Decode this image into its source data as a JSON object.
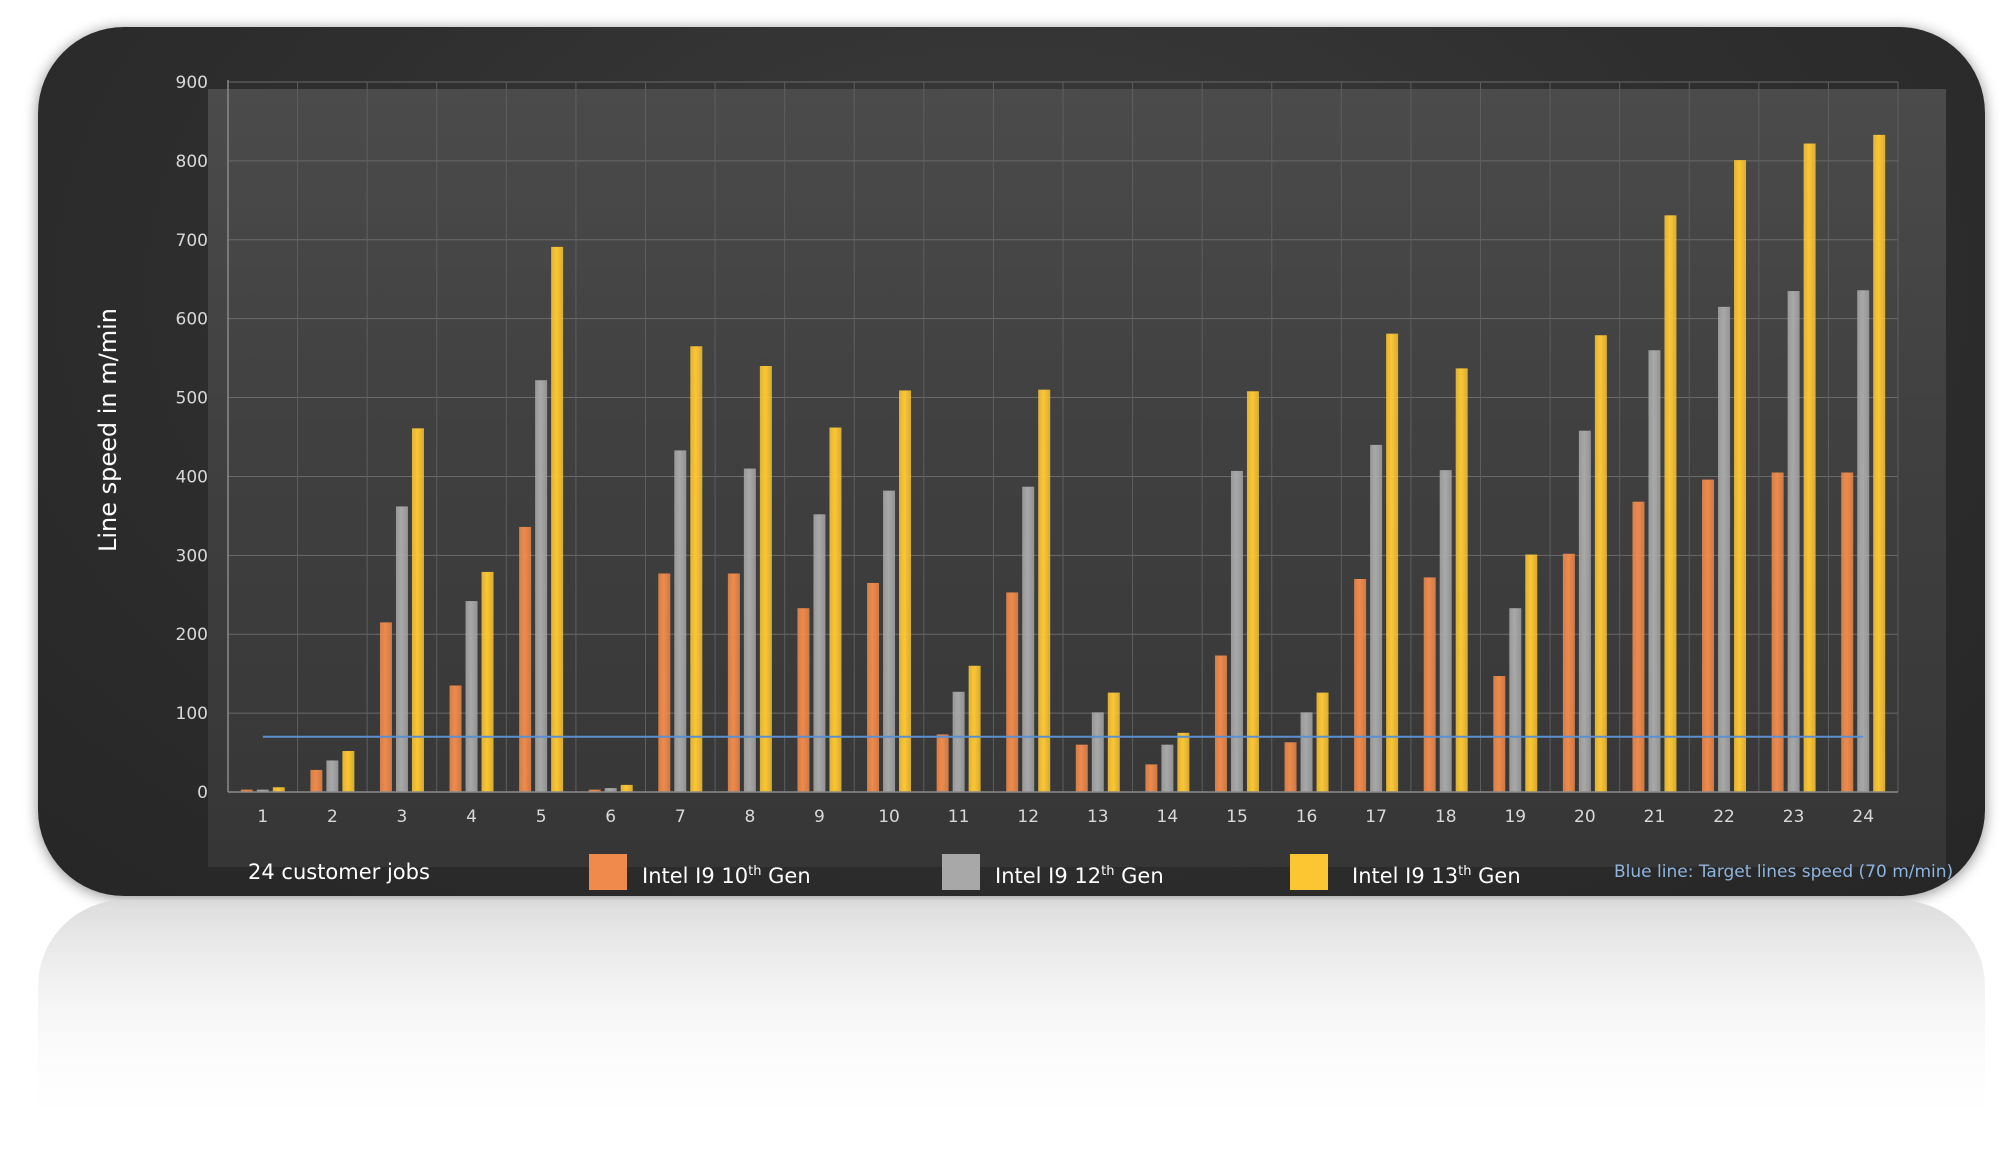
{
  "chart_data": {
    "type": "bar",
    "categories": [
      "1",
      "2",
      "3",
      "4",
      "5",
      "6",
      "7",
      "8",
      "9",
      "10",
      "11",
      "12",
      "13",
      "14",
      "15",
      "16",
      "17",
      "18",
      "19",
      "20",
      "21",
      "22",
      "23",
      "24"
    ],
    "series": [
      {
        "name": "Intel I9 10th Gen",
        "color": "#ef8a4c",
        "values": [
          3,
          28,
          215,
          135,
          336,
          3,
          277,
          277,
          233,
          265,
          73,
          253,
          60,
          35,
          173,
          63,
          270,
          272,
          147,
          302,
          368,
          396,
          405,
          405
        ]
      },
      {
        "name": "Intel I9 12th Gen",
        "color": "#a8a8a8",
        "values": [
          3,
          40,
          362,
          242,
          522,
          5,
          433,
          410,
          352,
          382,
          127,
          387,
          101,
          60,
          407,
          101,
          440,
          408,
          233,
          458,
          560,
          615,
          635,
          636
        ]
      },
      {
        "name": "Intel I9 13th Gen",
        "color": "#fcc633",
        "values": [
          6,
          52,
          461,
          279,
          691,
          9,
          565,
          540,
          462,
          509,
          160,
          510,
          126,
          75,
          508,
          126,
          581,
          537,
          301,
          579,
          731,
          801,
          822,
          833
        ]
      }
    ],
    "target_line": 70,
    "target_color": "#5b8fd0",
    "ylabel": "Line speed in m/min",
    "xlabel": "",
    "ylim": [
      0,
      900
    ],
    "yticks": [
      0,
      100,
      200,
      300,
      400,
      500,
      600,
      700,
      800,
      900
    ],
    "grid": true,
    "legend_position": "bottom"
  },
  "legend": {
    "jobs_label": "24 customer jobs",
    "gen10": {
      "prefix": "Intel I9 10",
      "sup": "th",
      "suffix": " Gen"
    },
    "gen12": {
      "prefix": "Intel I9 12",
      "sup": "th",
      "suffix": " Gen"
    },
    "gen13": {
      "prefix": "Intel I9 13",
      "sup": "th",
      "suffix": " Gen"
    },
    "target_note": "Blue line: Target lines speed (70 m/min)"
  }
}
